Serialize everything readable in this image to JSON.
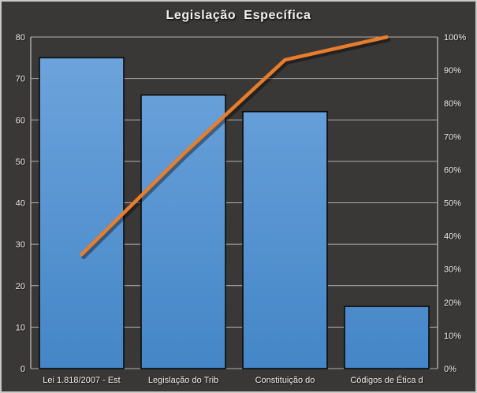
{
  "frame": {
    "background": "#3a3836",
    "border_color": "#c9c8c6"
  },
  "chart_data": {
    "type": "bar",
    "subtype": "pareto-with-cumulative-line",
    "title": "Legislação  Específica",
    "categories": [
      "Lei 1.818/2007 - Est",
      "Legislação do Trib",
      "Constituição do",
      "Códigos de Ética d"
    ],
    "series": [
      {
        "name": "bar-series",
        "type": "bar",
        "axis": "left",
        "values": [
          75,
          66,
          62,
          15
        ]
      },
      {
        "name": "cumulative-percent-line",
        "type": "line",
        "axis": "right",
        "values": [
          34.4,
          64.7,
          93.1,
          100
        ]
      }
    ],
    "left_axis": {
      "min": 0,
      "max": 80,
      "step": 10,
      "tick_labels": [
        "0",
        "10",
        "20",
        "30",
        "40",
        "50",
        "60",
        "70",
        "80"
      ]
    },
    "right_axis": {
      "min": 0,
      "max": 100,
      "step": 10,
      "tick_labels": [
        "0%",
        "10%",
        "20%",
        "30%",
        "40%",
        "50%",
        "60%",
        "70%",
        "80%",
        "90%",
        "100%"
      ]
    },
    "grid": "horizontal",
    "legend": "none",
    "colors": {
      "plot_background": "#3a3836",
      "gridline": "#b1b0ae",
      "axis_line": "#bbbab8",
      "bar_gradient_top": "#6fa5dd",
      "bar_gradient_bottom": "#4486c7",
      "bar_border": "#0b0b0b",
      "line": "#e87d2b",
      "text": "#efeeec",
      "title_text": "#f2f1ef"
    }
  }
}
